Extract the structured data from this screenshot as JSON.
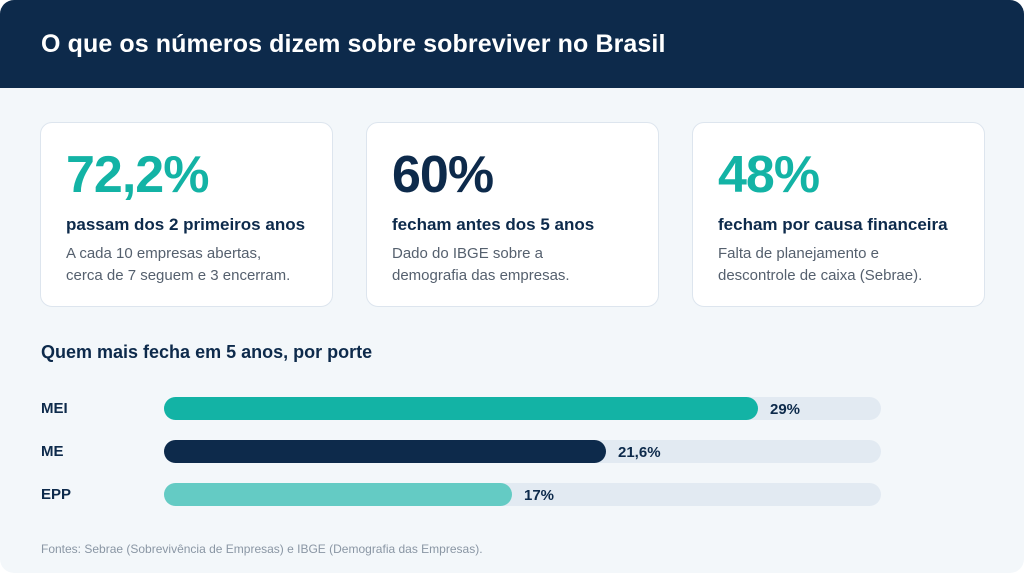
{
  "header": {
    "title": "O que os números dizem sobre sobreviver no Brasil"
  },
  "cards": [
    {
      "value": "72,2%",
      "color": "#13b3a5",
      "subtitle": "passam dos 2 primeiros anos",
      "description": "A cada 10 empresas abertas,\ncerca de 7 seguem e 3 encerram."
    },
    {
      "value": "60%",
      "color": "#0d2a4b",
      "subtitle": "fecham antes dos 5 anos",
      "description": "Dado do IBGE sobre a\ndemografia das empresas."
    },
    {
      "value": "48%",
      "color": "#13b3a5",
      "subtitle": "fecham por causa financeira",
      "description": "Falta de planejamento e\ndescontrole de caixa (Sebrae)."
    }
  ],
  "chart_data": {
    "type": "bar",
    "orientation": "horizontal",
    "title": "Quem mais fecha em 5 anos, por porte",
    "categories": [
      "MEI",
      "ME",
      "EPP"
    ],
    "values": [
      29,
      21.6,
      17
    ],
    "value_labels": [
      "29%",
      "21,6%",
      "17%"
    ],
    "xlim": [
      0,
      35
    ],
    "colors": [
      "#13b3a5",
      "#0d2a4b",
      "#64cbc4"
    ],
    "grid": false
  },
  "footer": {
    "source": "Fontes: Sebrae (Sobrevivência de Empresas) e IBGE (Demografia das Empresas)."
  }
}
